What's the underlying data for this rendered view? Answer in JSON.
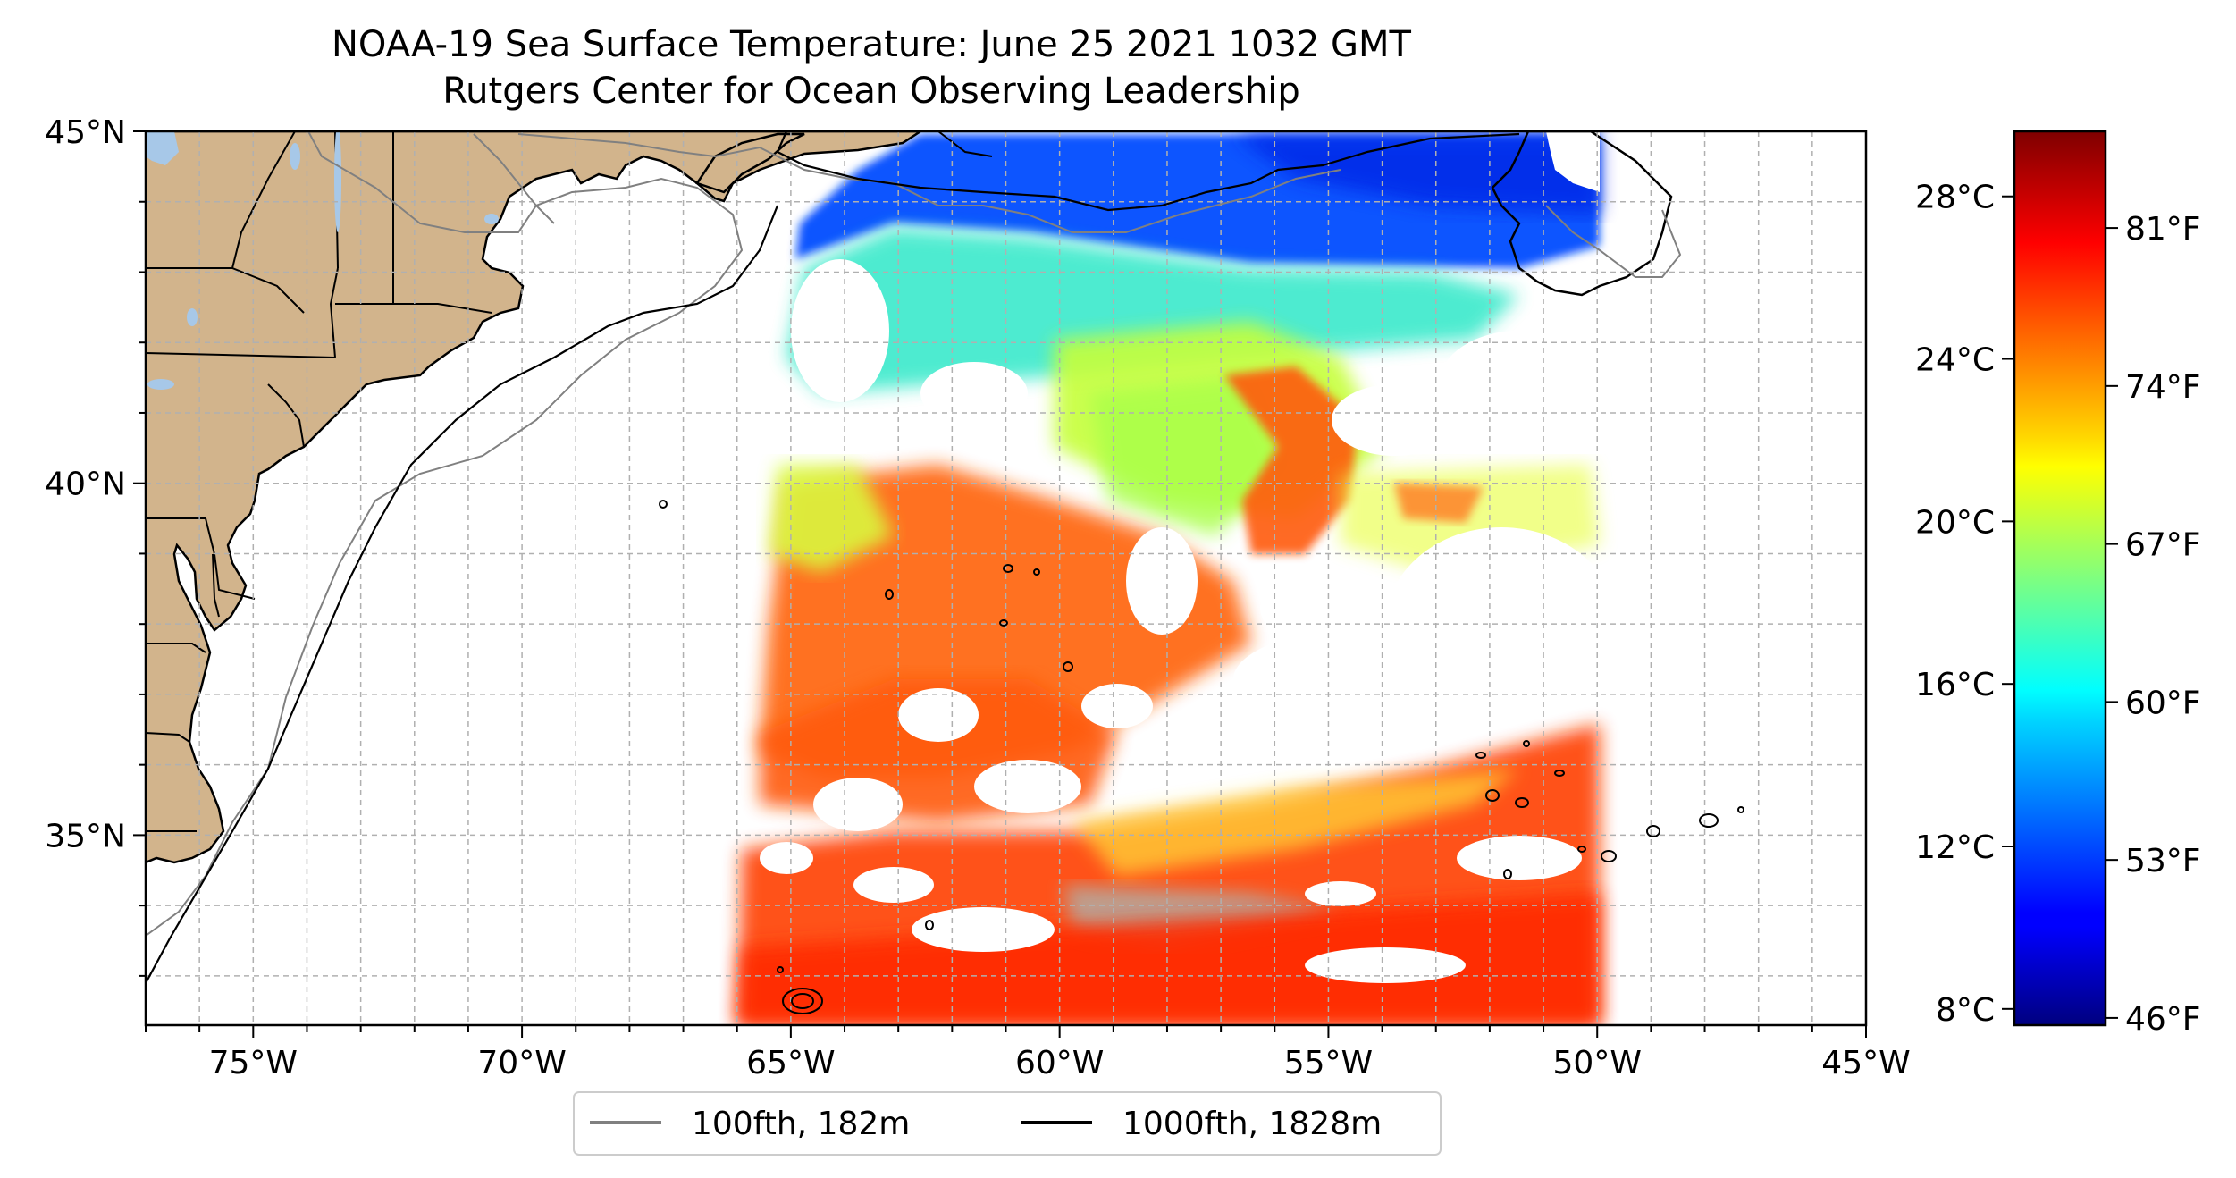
{
  "title": "NOAA-19 Sea Surface Temperature: June 25 2021 1032 GMT",
  "subtitle": "Rutgers Center for Ocean Observing Leadership",
  "map": {
    "lon_range": [
      -77,
      -45
    ],
    "lat_range": [
      32.3,
      45
    ],
    "lat_ticks": [
      {
        "value": 45,
        "label": "45°N"
      },
      {
        "value": 40,
        "label": "40°N"
      },
      {
        "value": 35,
        "label": "35°N"
      }
    ],
    "lon_ticks": [
      {
        "value": -75,
        "label": "75°W"
      },
      {
        "value": -70,
        "label": "70°W"
      },
      {
        "value": -65,
        "label": "65°W"
      },
      {
        "value": -60,
        "label": "60°W"
      },
      {
        "value": -55,
        "label": "55°W"
      },
      {
        "value": -50,
        "label": "50°W"
      },
      {
        "value": -45,
        "label": "45°W"
      }
    ],
    "land_color": "#d2b48c",
    "lake_color": "#a7c8e8",
    "grid": true
  },
  "legend": {
    "position": "bottom-center",
    "entries": [
      {
        "label": "100fth, 182m",
        "color": "#808080"
      },
      {
        "label": "1000fth, 1828m",
        "color": "#000000"
      }
    ]
  },
  "colorbar": {
    "colormap": "jet",
    "range_c": [
      7.6,
      29.6
    ],
    "celsius_ticks": [
      {
        "value": 28,
        "label": "28°C"
      },
      {
        "value": 24,
        "label": "24°C"
      },
      {
        "value": 20,
        "label": "20°C"
      },
      {
        "value": 16,
        "label": "16°C"
      },
      {
        "value": 12,
        "label": "12°C"
      },
      {
        "value": 8,
        "label": "8°C"
      }
    ],
    "fahrenheit_ticks": [
      {
        "value": 81,
        "label": "81°F"
      },
      {
        "value": 74,
        "label": "74°F"
      },
      {
        "value": 67,
        "label": "67°F"
      },
      {
        "value": 60,
        "label": "60°F"
      },
      {
        "value": 53,
        "label": "53°F"
      },
      {
        "value": 46,
        "label": "46°F"
      }
    ]
  }
}
